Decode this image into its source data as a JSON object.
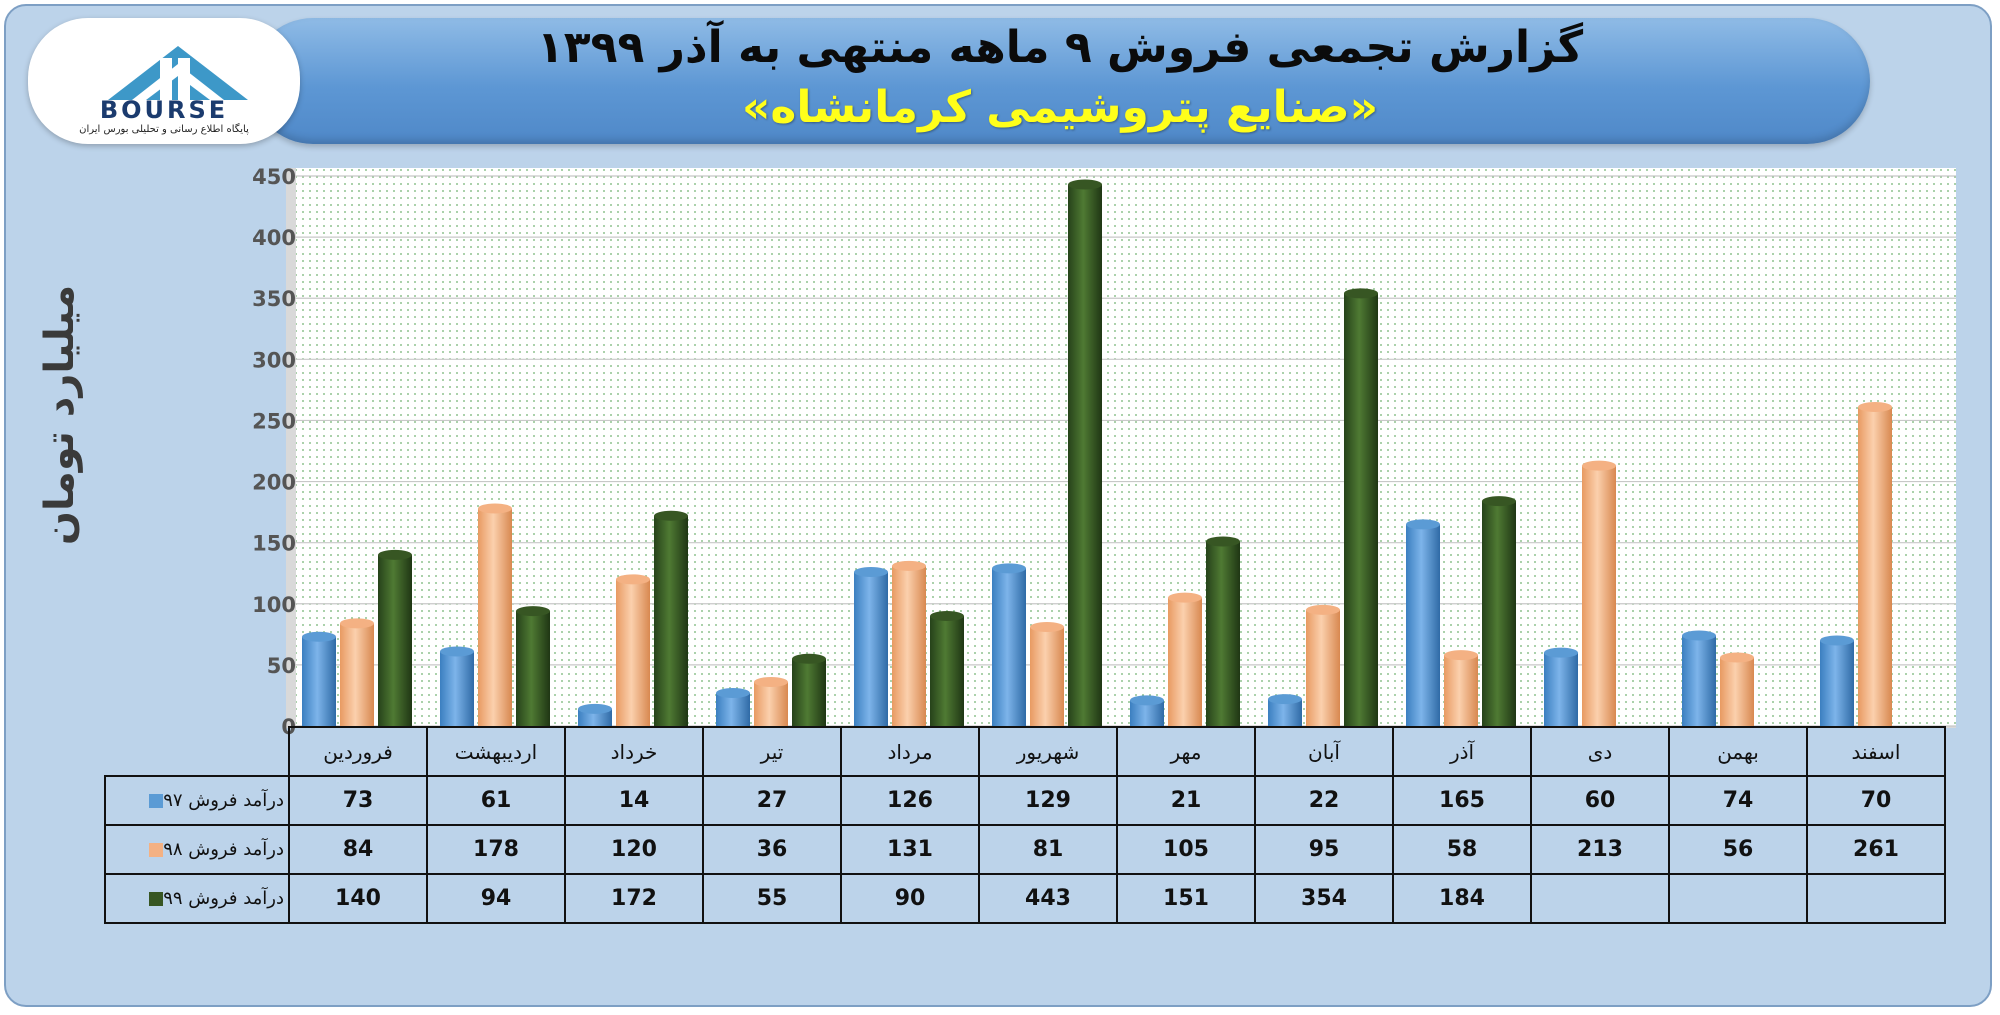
{
  "header": {
    "title": "گزارش تجمعی فروش ۹ ماهه منتهی به آذر ۱۳۹۹",
    "subtitle": "«صنایع پتروشیمی کرمانشاه»"
  },
  "logo": {
    "text": "BOURSE",
    "subtitle": "پایگاه اطلاع رسانی و تحلیلی بورس ایران"
  },
  "chart_data": {
    "type": "bar",
    "ylabel": "میلیارد تومان",
    "ylim": [
      0,
      450
    ],
    "yticks": [
      "0",
      "50",
      "100",
      "150",
      "200",
      "250",
      "300",
      "350",
      "400",
      "450"
    ],
    "grid": true,
    "legend_placement": "table-left",
    "categories": [
      "فروردین",
      "اردیبهشت",
      "خرداد",
      "تیر",
      "مرداد",
      "شهریور",
      "مهر",
      "آبان",
      "آذر",
      "دی",
      "بهمن",
      "اسفند"
    ],
    "series": [
      {
        "name": "درآمد فروش ۹۷",
        "color": "#5b9bd5",
        "values": [
          73,
          61,
          14,
          27,
          126,
          129,
          21,
          22,
          165,
          60,
          74,
          70
        ]
      },
      {
        "name": "درآمد فروش ۹۸",
        "color": "#f4b183",
        "values": [
          84,
          178,
          120,
          36,
          131,
          81,
          105,
          95,
          58,
          213,
          56,
          261
        ]
      },
      {
        "name": "درآمد فروش ۹۹",
        "color": "#375623",
        "values": [
          140,
          94,
          172,
          55,
          90,
          443,
          151,
          354,
          184,
          null,
          null,
          null
        ]
      }
    ]
  }
}
